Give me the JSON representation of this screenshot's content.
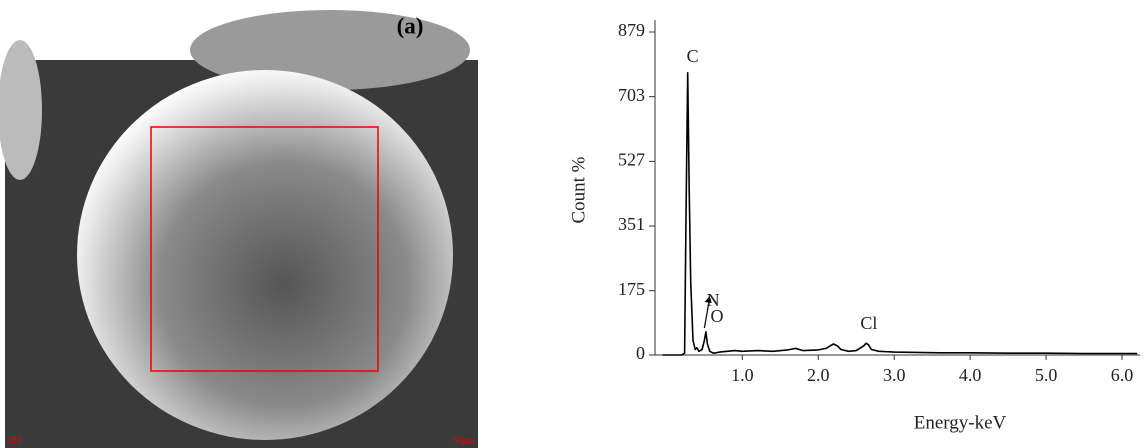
{
  "chart_data": {
    "type": "line",
    "title": "(a)",
    "xlabel": "Energy-keV",
    "ylabel": "Count %",
    "xlim": [
      -0.15,
      6.25
    ],
    "ylim": [
      0,
      879
    ],
    "xticks": [
      {
        "value": 1,
        "label": "1.0"
      },
      {
        "value": 2,
        "label": "2.0"
      },
      {
        "value": 3,
        "label": "3.0"
      },
      {
        "value": 4,
        "label": "4.0"
      },
      {
        "value": 5,
        "label": "5.0"
      },
      {
        "value": 6,
        "label": "6.0"
      }
    ],
    "yticks": [
      0,
      175,
      351,
      527,
      703,
      879
    ],
    "x": [
      -0.05,
      0.1,
      0.2,
      0.24,
      0.26,
      0.28,
      0.3,
      0.32,
      0.35,
      0.38,
      0.4,
      0.43,
      0.47,
      0.5,
      0.52,
      0.54,
      0.57,
      0.62,
      0.7,
      0.8,
      0.9,
      1.0,
      1.2,
      1.4,
      1.6,
      1.7,
      1.8,
      2.0,
      2.1,
      2.2,
      2.25,
      2.3,
      2.4,
      2.5,
      2.6,
      2.63,
      2.66,
      2.7,
      2.8,
      3.0,
      3.3,
      3.6,
      4.0,
      4.5,
      5.0,
      5.5,
      6.0,
      6.2
    ],
    "series": [
      {
        "color": "#000000",
        "values": [
          0,
          0,
          0,
          5,
          400,
          768,
          450,
          200,
          40,
          15,
          20,
          10,
          15,
          40,
          63,
          30,
          10,
          5,
          8,
          10,
          12,
          10,
          12,
          10,
          14,
          18,
          12,
          14,
          18,
          30,
          25,
          15,
          10,
          12,
          25,
          32,
          28,
          15,
          10,
          8,
          7,
          6,
          6,
          5,
          5,
          4,
          4,
          4
        ]
      }
    ],
    "annotations": [
      {
        "text": "C",
        "x": 0.28
      },
      {
        "text": "N",
        "x": 0.55
      },
      {
        "text": "O",
        "x": 0.6
      },
      {
        "text": "Cl",
        "x": 2.6
      }
    ],
    "image_labels": [
      "SEI",
      "50µm"
    ]
  }
}
